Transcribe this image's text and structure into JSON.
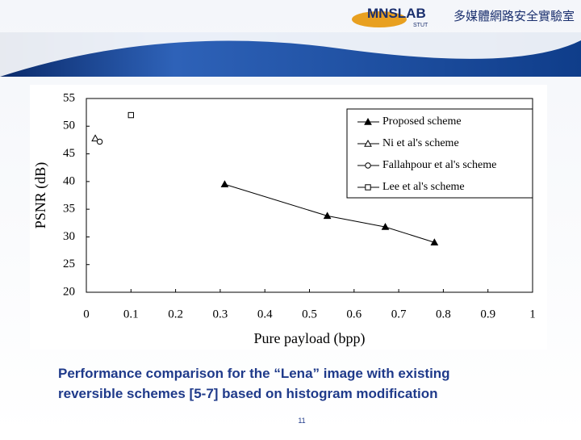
{
  "header": {
    "logo": "MNSLAB",
    "logo_sub": "STUT",
    "lab_name": "多媒體網路安全實驗室"
  },
  "chart_data": {
    "type": "line",
    "x_label": "Pure payload (bpp)",
    "y_label": "PSNR (dB)",
    "xlim": [
      0,
      1
    ],
    "xticks": [
      0,
      0.1,
      0.2,
      0.3,
      0.4,
      0.5,
      0.6,
      0.7,
      0.8,
      0.9,
      1
    ],
    "ylim": [
      20,
      55
    ],
    "yticks": [
      20,
      25,
      30,
      35,
      40,
      45,
      50,
      55
    ],
    "legend": "top-right",
    "color": "#000000",
    "series": [
      {
        "name": "Proposed scheme",
        "marker": "filled-triangle",
        "x": [
          0.31,
          0.54,
          0.67,
          0.78
        ],
        "values": [
          39.5,
          33.8,
          31.8,
          29
        ]
      },
      {
        "name": "Ni et al's scheme",
        "marker": "triangle",
        "x": [
          0.02
        ],
        "values": [
          47.8
        ]
      },
      {
        "name": "Fallahpour et al's scheme",
        "marker": "circle",
        "x": [
          0.03
        ],
        "values": [
          47.2
        ]
      },
      {
        "name": "Lee et al's scheme",
        "marker": "square",
        "x": [
          0.1
        ],
        "values": [
          52
        ]
      }
    ]
  },
  "caption": [
    "Performance comparison for the “Lena” image with existing",
    "reversible schemes [5-7] based on histogram modification"
  ],
  "page_number": "11"
}
